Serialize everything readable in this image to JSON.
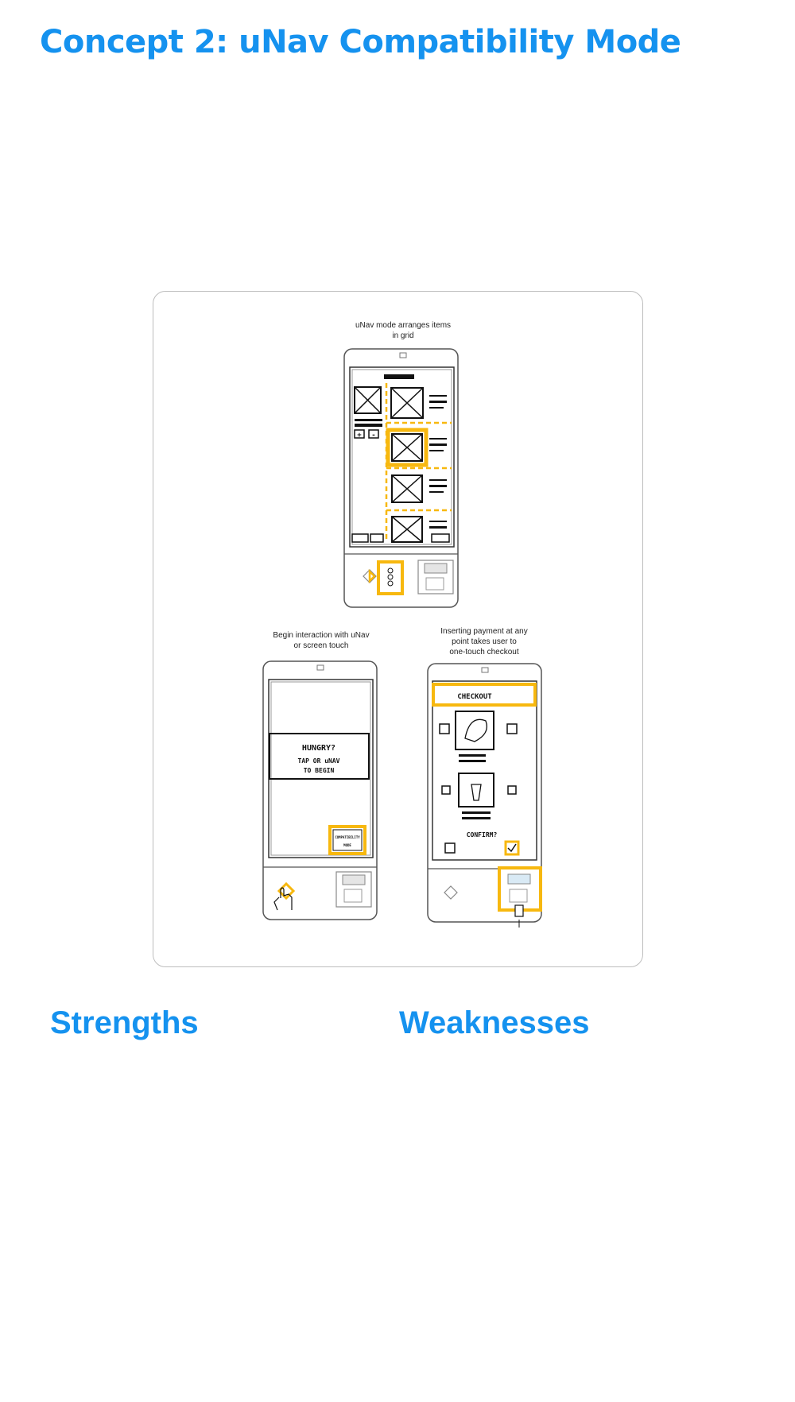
{
  "page": {
    "title": "Concept 2: uNav Compatibility Mode"
  },
  "sketches": {
    "top": {
      "caption_lines": [
        "uNav mode arranges items",
        "in grid"
      ]
    },
    "left": {
      "caption_lines": [
        "Begin interaction with uNav",
        "or screen touch"
      ],
      "screen_lines": [
        "HUNGRY?",
        "TAP OR uNAV",
        "TO BEGIN"
      ],
      "button_lines": [
        "COMPATIBILITY",
        "MODE"
      ]
    },
    "right": {
      "caption_lines": [
        "Inserting payment at any",
        "point takes user to",
        "one-touch checkout"
      ],
      "checkout_label": "CHECKOUT",
      "confirm_label": "CONFIRM?"
    }
  },
  "sections": {
    "strengths": {
      "label": "Strengths"
    },
    "weaknesses": {
      "label": "Weaknesses"
    }
  },
  "colors": {
    "accent": "#1592ef",
    "highlight": "#f7b80f",
    "ink": "#111111"
  }
}
